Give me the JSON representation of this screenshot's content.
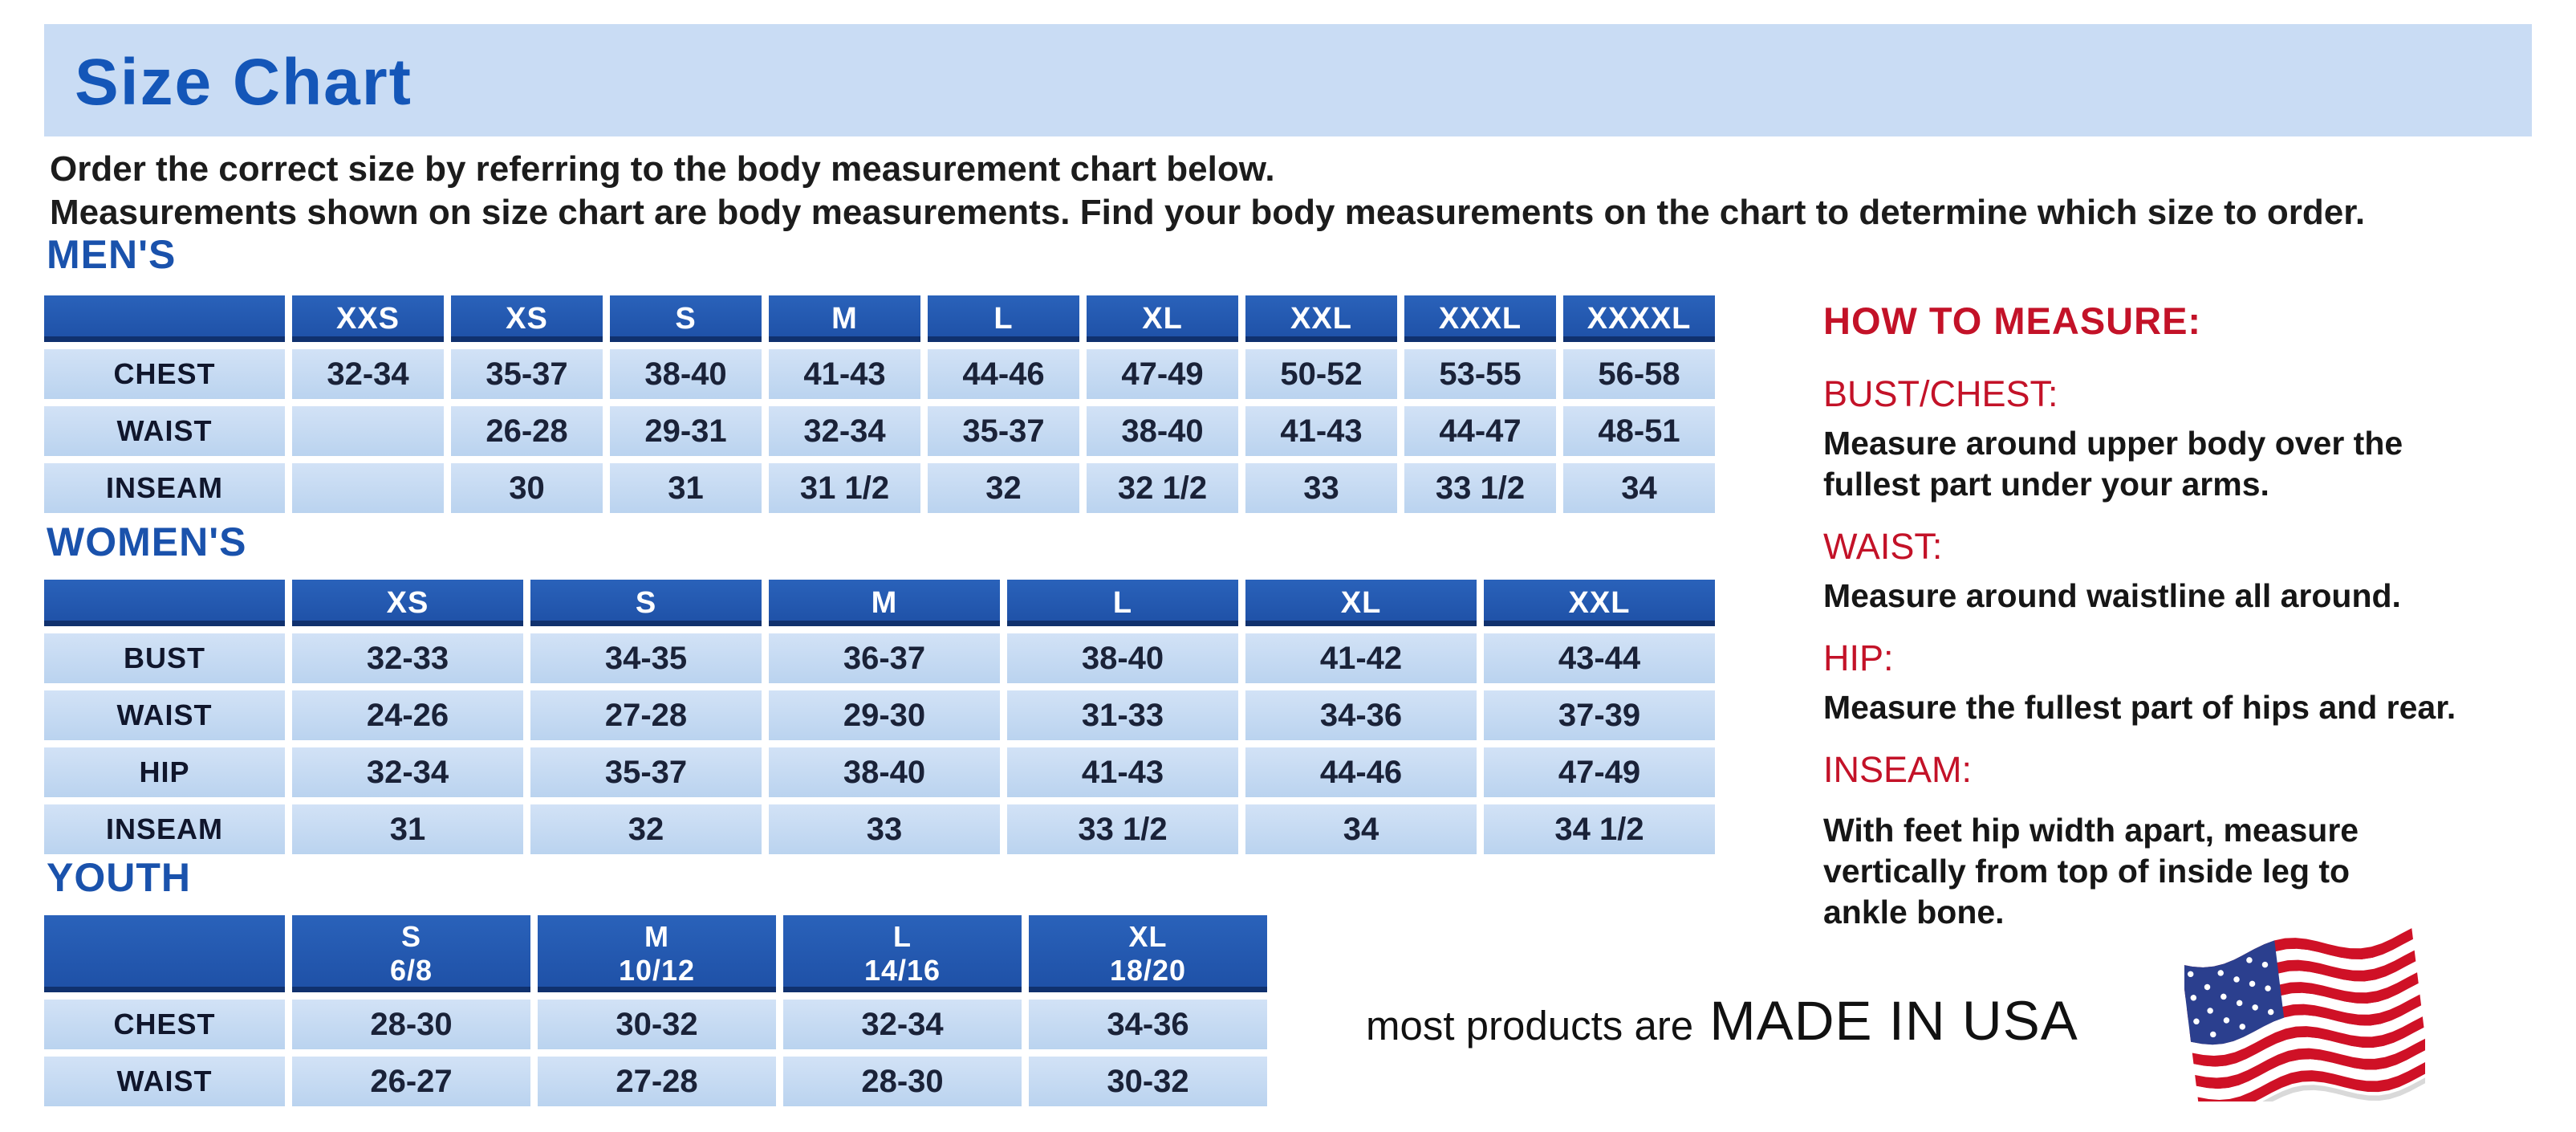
{
  "page": {
    "title": "Size Chart",
    "intro_line1": "Order the correct size by referring to the body measurement chart below.",
    "intro_line2": "Measurements shown on size chart are body measurements.  Find your body measurements on the chart to determine which size to order."
  },
  "colors": {
    "banner_bg": "#c9dcf4",
    "title_blue": "#1456b8",
    "section_heading_blue": "#1a52ac",
    "table_header_bg": "#2156ad",
    "table_cell_bg": "#c3d9f1",
    "red_accent": "#c31228",
    "flag_red": "#cf1126",
    "flag_blue": "#2b3f8e"
  },
  "tables": [
    {
      "title": "MEN'S",
      "columns": [
        [
          "XXS"
        ],
        [
          "XS"
        ],
        [
          "S"
        ],
        [
          "M"
        ],
        [
          "L"
        ],
        [
          "XL"
        ],
        [
          "XXL"
        ],
        [
          "XXXL"
        ],
        [
          "XXXXL"
        ]
      ],
      "rows": [
        {
          "label": "CHEST",
          "values": [
            "32-34",
            "35-37",
            "38-40",
            "41-43",
            "44-46",
            "47-49",
            "50-52",
            "53-55",
            "56-58"
          ]
        },
        {
          "label": "WAIST",
          "values": [
            "",
            "26-28",
            "29-31",
            "32-34",
            "35-37",
            "38-40",
            "41-43",
            "44-47",
            "48-51"
          ]
        },
        {
          "label": "INSEAM",
          "values": [
            "",
            "30",
            "31",
            "31 1/2",
            "32",
            "32 1/2",
            "33",
            "33 1/2",
            "34"
          ]
        }
      ]
    },
    {
      "title": "WOMEN'S",
      "columns": [
        [
          "XS"
        ],
        [
          "S"
        ],
        [
          "M"
        ],
        [
          "L"
        ],
        [
          "XL"
        ],
        [
          "XXL"
        ]
      ],
      "rows": [
        {
          "label": "BUST",
          "values": [
            "32-33",
            "34-35",
            "36-37",
            "38-40",
            "41-42",
            "43-44"
          ]
        },
        {
          "label": "WAIST",
          "values": [
            "24-26",
            "27-28",
            "29-30",
            "31-33",
            "34-36",
            "37-39"
          ]
        },
        {
          "label": "HIP",
          "values": [
            "32-34",
            "35-37",
            "38-40",
            "41-43",
            "44-46",
            "47-49"
          ]
        },
        {
          "label": "INSEAM",
          "values": [
            "31",
            "32",
            "33",
            "33 1/2",
            "34",
            "34 1/2"
          ]
        }
      ]
    },
    {
      "title": "YOUTH",
      "columns": [
        [
          "S",
          "6/8"
        ],
        [
          "M",
          "10/12"
        ],
        [
          "L",
          "14/16"
        ],
        [
          "XL",
          "18/20"
        ]
      ],
      "rows": [
        {
          "label": "CHEST",
          "values": [
            "28-30",
            "30-32",
            "32-34",
            "34-36"
          ]
        },
        {
          "label": "WAIST",
          "values": [
            "26-27",
            "27-28",
            "28-30",
            "30-32"
          ]
        }
      ]
    }
  ],
  "how_to_measure": {
    "title": "HOW TO MEASURE:",
    "items": [
      {
        "label": "BUST/CHEST:",
        "text": "Measure around upper body over the\nfullest part under your arms."
      },
      {
        "label": "WAIST:",
        "text": "Measure around waistline all around."
      },
      {
        "label": "HIP:",
        "text": "Measure the fullest part of hips and rear."
      },
      {
        "label": "INSEAM:",
        "text": "With feet hip width apart, measure\nvertically from top of inside leg to\nankle bone."
      }
    ]
  },
  "footer": {
    "prefix": "most products are",
    "emphasis": "MADE IN USA",
    "flag_icon": "us-flag-icon"
  }
}
